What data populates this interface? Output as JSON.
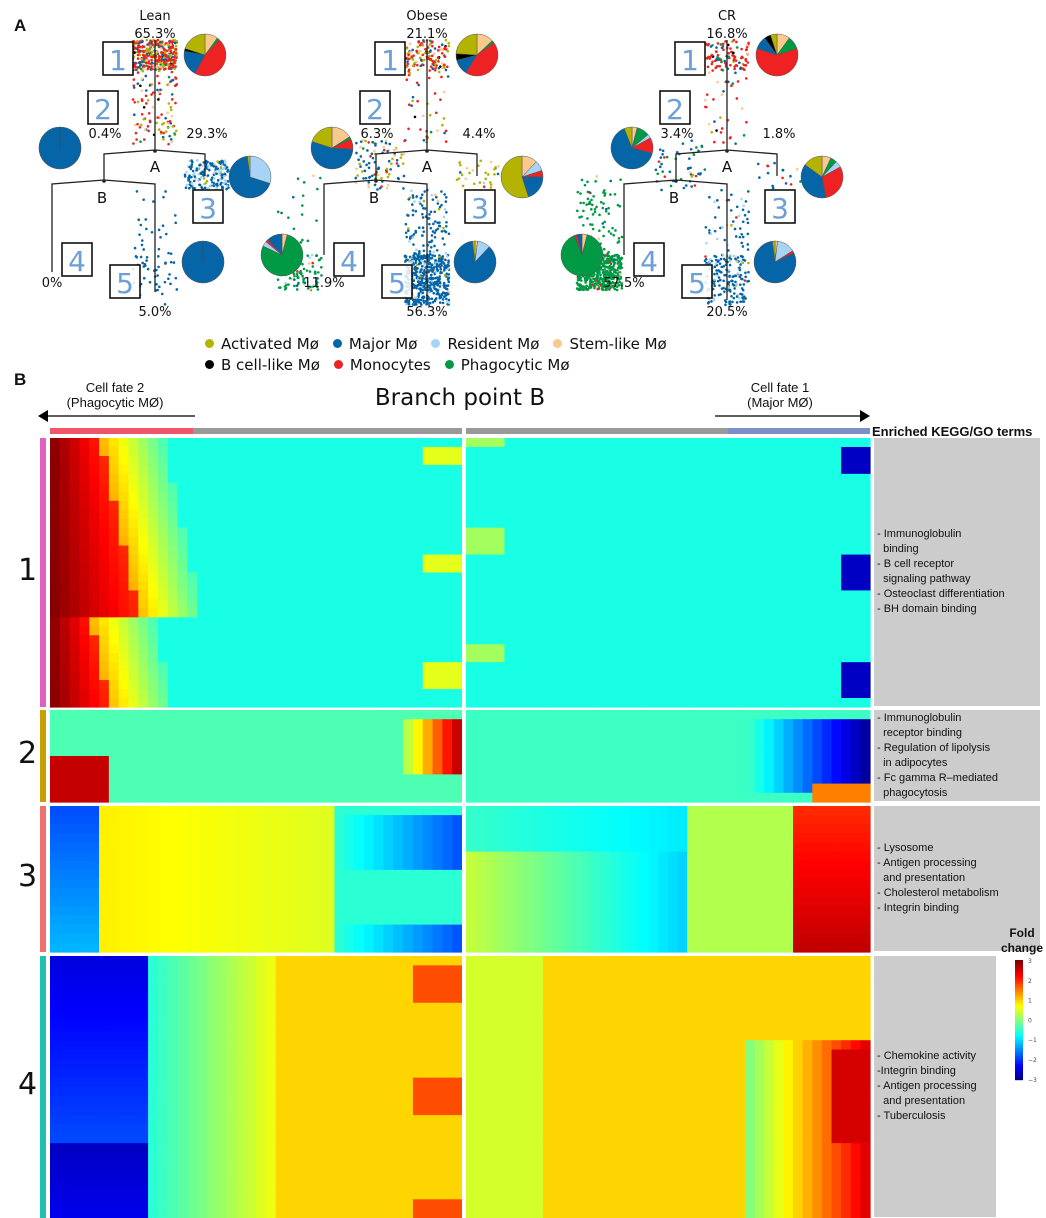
{
  "panel_a": {
    "letter": "A",
    "trees": [
      {
        "title": "Lean",
        "percents": {
          "s1": "65.3%",
          "s2": "0.4%",
          "s3": "29.3%",
          "s4": "0%",
          "s5": "5.0%"
        },
        "pies": {
          "s1": {
            "activated": 0.2,
            "bcell": 0.02,
            "major": 0.2,
            "monocytes": 0.46,
            "phagocytic": 0.02,
            "stem": 0.1
          },
          "s2": {
            "major": 1.0
          },
          "s3": {
            "activated": 0.02,
            "major": 0.68,
            "resident": 0.3
          },
          "s5": {
            "major": 1.0
          }
        }
      },
      {
        "title": "Obese",
        "percents": {
          "s1": "21.1%",
          "s2": "6.3%",
          "s3": "4.4%",
          "s4": "11.9%",
          "s5": "56.3%"
        },
        "pies": {
          "s1": {
            "activated": 0.24,
            "bcell": 0.05,
            "major": 0.12,
            "monocytes": 0.44,
            "phagocytic": 0.02,
            "stem": 0.13
          },
          "s2": {
            "activated": 0.2,
            "major": 0.54,
            "monocytes": 0.08,
            "phagocytic": 0.02,
            "stem": 0.16
          },
          "s3": {
            "activated": 0.55,
            "major": 0.2,
            "resident": 0.08,
            "monocytes": 0.05,
            "stem": 0.12
          },
          "s4": {
            "phagocytic": 0.78,
            "monocytes": 0.02,
            "major": 0.12,
            "stem": 0.04,
            "resident": 0.04
          },
          "s5": {
            "major": 0.86,
            "activated": 0.02,
            "stem": 0.02,
            "resident": 0.1
          }
        }
      },
      {
        "title": "CR",
        "percents": {
          "s1": "16.8%",
          "s2": "3.4%",
          "s3": "1.8%",
          "s4": "57.5%",
          "s5": "20.5%"
        },
        "pies": {
          "s1": {
            "stem": 0.1,
            "phagocytic": 0.1,
            "monocytes": 0.6,
            "major": 0.1,
            "bcell": 0.05,
            "activated": 0.05
          },
          "s2": {
            "stem": 0.04,
            "phagocytic": 0.1,
            "resident": 0.03,
            "monocytes": 0.12,
            "major": 0.65,
            "activated": 0.06
          },
          "s3": {
            "stem": 0.07,
            "phagocytic": 0.05,
            "resident": 0.05,
            "monocytes": 0.3,
            "major": 0.38,
            "activated": 0.15
          },
          "s4": {
            "phagocytic": 0.9,
            "monocytes": 0.02,
            "major": 0.04,
            "stem": 0.04
          },
          "s5": {
            "major": 0.8,
            "resident": 0.14,
            "monocytes": 0.02,
            "activated": 0.02,
            "stem": 0.02
          }
        }
      }
    ],
    "state_labels": [
      "1",
      "2",
      "3",
      "4",
      "5"
    ],
    "branch_labels": {
      "a": "A",
      "b": "B"
    },
    "legend": [
      {
        "key": "activated",
        "label": "Activated Mø",
        "color": "#b3b300"
      },
      {
        "key": "major",
        "label": "Major Mø",
        "color": "#0565a6"
      },
      {
        "key": "resident",
        "label": "Resident Mø",
        "color": "#a7d4f4"
      },
      {
        "key": "stem",
        "label": "Stem-like Mø",
        "color": "#fbc88e"
      },
      {
        "key": "bcell",
        "label": "B cell-like Mø",
        "color": "#000000"
      },
      {
        "key": "monocytes",
        "label": "Monocytes",
        "color": "#ee2222"
      },
      {
        "key": "phagocytic",
        "label": "Phagocytic Mø",
        "color": "#009944"
      }
    ]
  },
  "panel_b": {
    "letter": "B",
    "title": "Branch point B",
    "fate_left": {
      "line1": "Cell fate 2",
      "line2": "(Phagocytic MØ)"
    },
    "fate_right": {
      "line1": "Cell fate 1",
      "line2": "(Major MØ)"
    },
    "terms_header": "Enriched KEGG/GO terms",
    "colors": {
      "fate2_bar": "#f0556a",
      "fate1_bar": "#7b90c8",
      "pre_branch_bar": "#999999"
    }
  },
  "chart_data": {
    "type": "heatmap",
    "title": "Branch point B",
    "xlabel_left": "Cell fate 2 (Phagocytic MØ)",
    "xlabel_right": "Cell fate 1 (Major MØ)",
    "colorbar": {
      "label": "Fold change",
      "range": [
        -3,
        3
      ],
      "ticks": [
        "3",
        "2",
        "1",
        "0",
        "−1",
        "−2",
        "−3"
      ],
      "colormap": "jet"
    },
    "clusters": [
      {
        "label": "1",
        "color": "#e060c0",
        "terms": [
          "- Immunoglobulin",
          "  binding",
          "- B cell receptor",
          "  signaling pathway",
          "- Osteoclast differentiation",
          "- BH domain binding"
        ]
      },
      {
        "label": "2",
        "color": "#c8a000",
        "terms": [
          "- Immunoglobulin",
          "  receptor binding",
          "- Regulation of lipolysis",
          "  in adipocytes",
          "- Fc gamma R–mediated",
          "  phagocytosis"
        ]
      },
      {
        "label": "3",
        "color": "#f07070",
        "terms": [
          "- Lysosome",
          "- Antigen processing",
          "  and presentation",
          "- Cholesterol metabolism",
          "- Integrin binding"
        ]
      },
      {
        "label": "4",
        "color": "#20c0b0",
        "terms": [
          "- Chemokine activity",
          "-Integrin binding",
          "- Antigen processing",
          "  and presentation",
          "- Tuberculosis"
        ]
      }
    ]
  }
}
